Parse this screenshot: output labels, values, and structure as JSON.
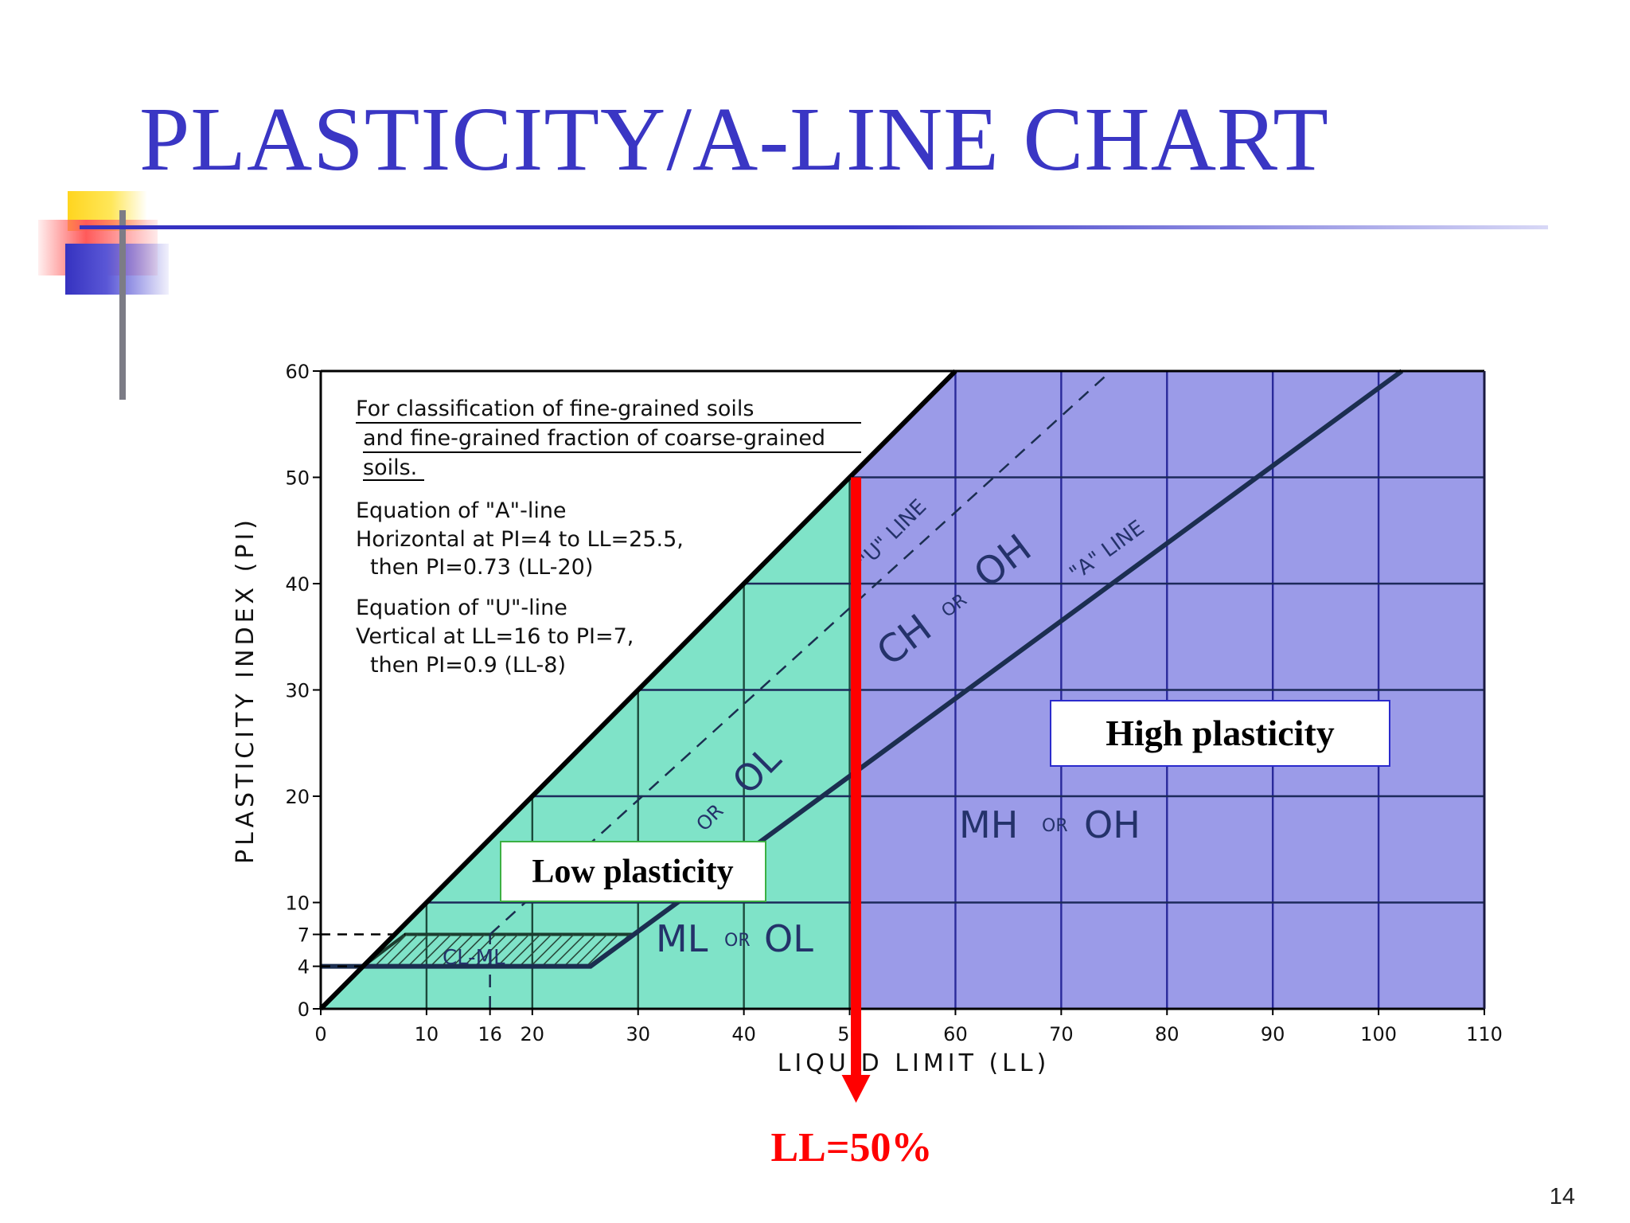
{
  "slide": {
    "title": "PLASTICITY/A-LINE CHART",
    "page_number": "14"
  },
  "colors": {
    "title": "#3a36c4",
    "low_region": "#7fe3c8",
    "high_region": "#9b9be8",
    "grid_on_blue": "#2a2a9a",
    "ll50_arrow": "#ff0000",
    "low_label_border": "#3cb043",
    "high_label_border": "#2a2acc"
  },
  "chart_data": {
    "type": "line",
    "title": "",
    "xlabel": "LIQUID LIMIT (LL)",
    "ylabel": "PLASTICITY INDEX (PI)",
    "xlim": [
      0,
      110
    ],
    "ylim": [
      0,
      60
    ],
    "x_ticks": [
      {
        "value": 0,
        "label": "0"
      },
      {
        "value": 10,
        "label": "10"
      },
      {
        "value": 16,
        "label": "16"
      },
      {
        "value": 20,
        "label": "20"
      },
      {
        "value": 30,
        "label": "30"
      },
      {
        "value": 40,
        "label": "40"
      },
      {
        "value": 50,
        "label": "50"
      },
      {
        "value": 60,
        "label": "60"
      },
      {
        "value": 70,
        "label": "70"
      },
      {
        "value": 80,
        "label": "80"
      },
      {
        "value": 90,
        "label": "90"
      },
      {
        "value": 100,
        "label": "100"
      },
      {
        "value": 110,
        "label": "110"
      }
    ],
    "y_ticks": [
      {
        "value": 0,
        "label": "0"
      },
      {
        "value": 4,
        "label": "4"
      },
      {
        "value": 7,
        "label": "7"
      },
      {
        "value": 10,
        "label": "10"
      },
      {
        "value": 20,
        "label": "20"
      },
      {
        "value": 30,
        "label": "30"
      },
      {
        "value": 40,
        "label": "40"
      },
      {
        "value": 50,
        "label": "50"
      },
      {
        "value": 60,
        "label": "60"
      }
    ],
    "grid": true,
    "series": [
      {
        "name": "\"A\" LINE",
        "x": [
          0,
          25.5,
          102.2
        ],
        "y": [
          4,
          4,
          60
        ],
        "style": "solid"
      },
      {
        "name": "\"U\" LINE",
        "x": [
          16,
          74.7
        ],
        "y": [
          7,
          60
        ],
        "style": "dashed"
      },
      {
        "name": "",
        "x": [
          0,
          60
        ],
        "y": [
          0,
          60
        ],
        "style": "solid"
      }
    ],
    "cl_ml_band": {
      "x": [
        4,
        8,
        29.6,
        25.5
      ],
      "y": [
        4,
        7,
        7,
        4
      ]
    },
    "regions": [
      {
        "label": "CL OR OL",
        "text_parts": [
          "OR",
          "OL"
        ]
      },
      {
        "label": "ML OR OL",
        "text_parts": [
          "ML",
          "OR",
          "OL"
        ]
      },
      {
        "label": "CH OR OH",
        "text_parts": [
          "CH",
          "OR",
          "OH"
        ]
      },
      {
        "label": "MH OR OH",
        "text_parts": [
          "MH",
          "OR",
          "OH"
        ]
      },
      {
        "label": "CL-ML",
        "text_parts": [
          "CL-ML"
        ]
      }
    ],
    "line_labels": {
      "u_line": "\"U\" LINE",
      "a_line": "\"A\" LINE"
    },
    "notes": [
      "For classification of fine-grained soils",
      "and fine-grained fraction of coarse-grained",
      "soils.",
      "Equation of \"A\"-line",
      "Horizontal at PI=4 to LL=25.5,",
      "then PI=0.73 (LL-20)",
      "Equation of \"U\"-line",
      "Vertical at LL=16 to PI=7,",
      "then PI=0.9 (LL-8)"
    ],
    "annotations": {
      "low_plasticity": "Low plasticity",
      "high_plasticity": "High plasticity",
      "ll_marker": "LL=50%",
      "ll_marker_value": 50
    }
  }
}
